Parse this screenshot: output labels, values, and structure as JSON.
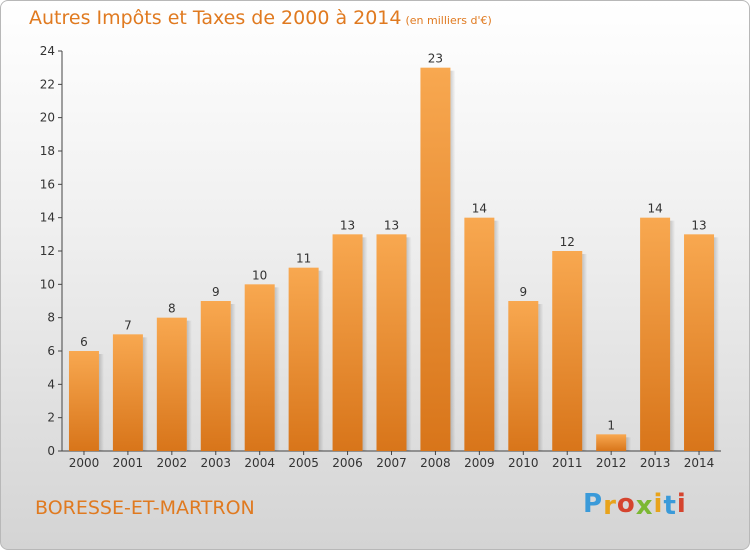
{
  "chart_data": {
    "type": "bar",
    "title": "Autres Impôts et Taxes de 2000 à 2014",
    "subtitle": "(en milliers d'€)",
    "xlabel": "",
    "ylabel": "",
    "categories": [
      "2000",
      "2001",
      "2002",
      "2003",
      "2004",
      "2005",
      "2006",
      "2007",
      "2008",
      "2009",
      "2010",
      "2011",
      "2012",
      "2013",
      "2014"
    ],
    "values": [
      6,
      7,
      8,
      9,
      10,
      11,
      13,
      13,
      23,
      14,
      9,
      12,
      1,
      14,
      13
    ],
    "ylim": [
      0,
      24
    ],
    "yticks": [
      0,
      2,
      4,
      6,
      8,
      10,
      12,
      14,
      16,
      18,
      20,
      22,
      24
    ],
    "grid": false,
    "bar_color": "#f0922e"
  },
  "footer": {
    "commune": "BORESSE-ET-MARTRON",
    "logo_letters": [
      "P",
      "r",
      "o",
      "x",
      "i",
      "t",
      "i"
    ],
    "logo_colors": [
      "#3a9ad9",
      "#e8a31b",
      "#d5442e",
      "#7cb833",
      "#e8a31b",
      "#3a9ad9",
      "#d5442e"
    ]
  }
}
